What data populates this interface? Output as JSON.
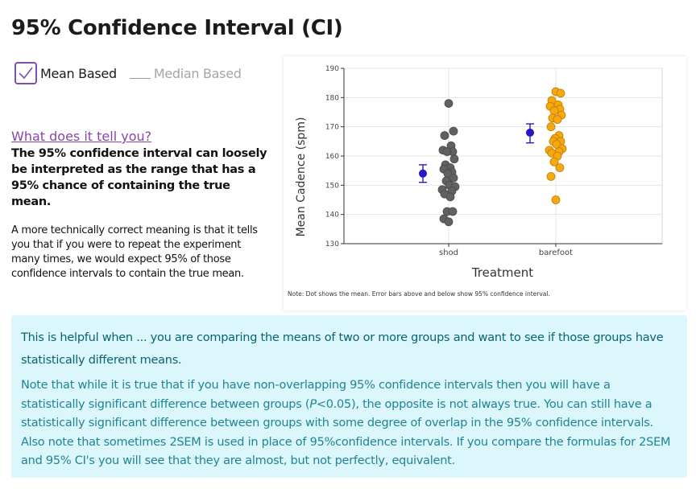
{
  "page": {
    "title": "95% Confidence Interval (CI)"
  },
  "options": {
    "mean_label": "Mean Based",
    "mean_checked": true,
    "median_label": "Median Based"
  },
  "explanation": {
    "link": "What does it tell you?",
    "bold": "The 95% confidence interval can loosely be interpreted as the range that has a 95% chance of containing the true mean.",
    "plain": "A more technically correct meaning is that it tells you that if you were to repeat the experiment many times, we would expect 95% of those confidence intervals to contain the true mean."
  },
  "chart_data": {
    "type": "scatter",
    "xlabel": "Treatment",
    "ylabel": "Mean Cadence (spm)",
    "categories": [
      "shod",
      "barefoot"
    ],
    "ylim": [
      130,
      190
    ],
    "yticks": [
      130,
      140,
      150,
      160,
      170,
      180,
      190
    ],
    "grid": true,
    "note": "Note: Dot shows the mean. Error bars above and below show 95% confidence interval.",
    "series": [
      {
        "category": "shod",
        "color": "#616161",
        "points": [
          178,
          168.5,
          167,
          163.5,
          162,
          161.5,
          161.5,
          159,
          157,
          156,
          155.5,
          154.5,
          154,
          152.5,
          151.5,
          150,
          149.5,
          148.5,
          148,
          147,
          146,
          141,
          141,
          138.5,
          137.5
        ],
        "mean": 154,
        "ci": [
          151,
          157
        ]
      },
      {
        "category": "barefoot",
        "color": "#f5a90e",
        "points": [
          182,
          181.5,
          179,
          177.5,
          177,
          176,
          175.5,
          174,
          173,
          172.5,
          170,
          167,
          166,
          165,
          165,
          164,
          162.5,
          162,
          161.5,
          161,
          160,
          158,
          156,
          153,
          145
        ],
        "mean": 168,
        "ci": [
          164.5,
          171
        ]
      }
    ],
    "mean_color": "#2a16c7"
  },
  "note": {
    "lead": "This is helpful when ... you are comparing the means of two or more groups and want to see if those groups have statistically different means.",
    "body_pre": "Note that while it is true that if you have non-overlapping 95% confidence intervals then you will have a statistically significant difference between groups (",
    "body_p": "P",
    "body_post": "<0.05), the opposite is not always true. You can still have a statistically significant difference between groups with some degree of overlap in the 95% confidence intervals. Also note that sometimes 2SEM is used in place of 95%confidence intervals. If you compare the formulas for 2SEM and 95% CI's you will see that they are almost, but not perfectly, equivalent."
  }
}
